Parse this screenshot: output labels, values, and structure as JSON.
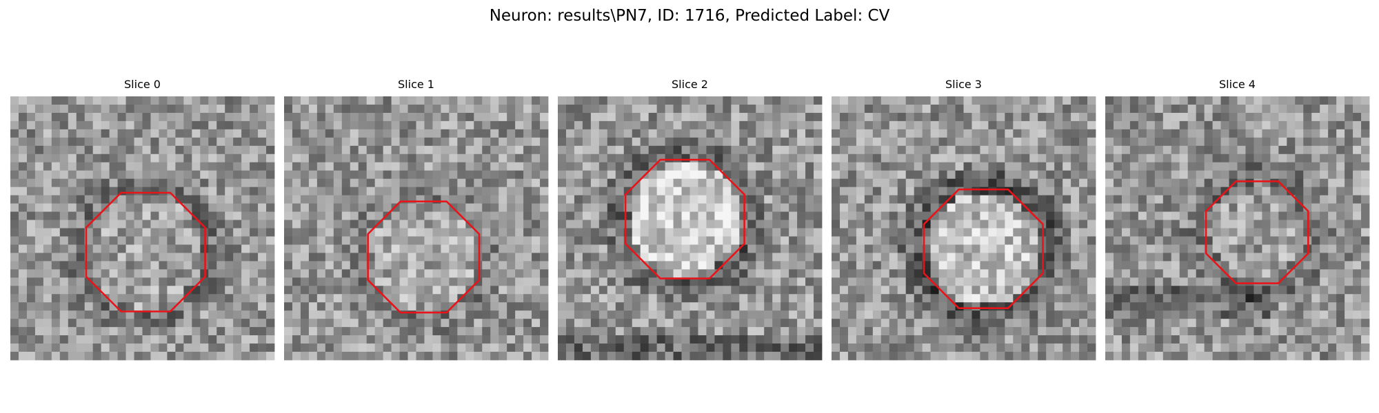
{
  "title": "Neuron: results\\PN7, ID: 1716, Predicted Label: CV",
  "panels": [
    {
      "title": "Slice 0"
    },
    {
      "title": "Slice 1"
    },
    {
      "title": "Slice 2"
    },
    {
      "title": "Slice 3"
    },
    {
      "title": "Slice 4"
    }
  ]
}
